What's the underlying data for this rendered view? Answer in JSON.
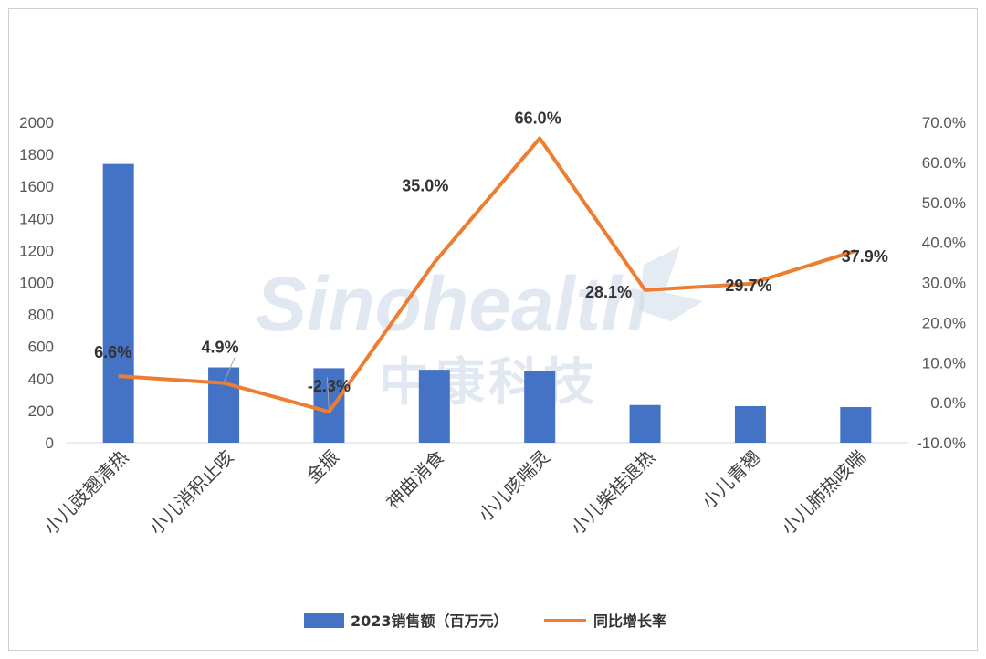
{
  "watermark": {
    "brand": "Sinohealth",
    "brand_cn": "中康科技"
  },
  "chart_data": {
    "type": "bar",
    "categories": [
      "小儿豉翘清热",
      "小儿消积止咳",
      "金振",
      "神曲消食",
      "小儿咳喘灵",
      "小儿柴桂退热",
      "小儿青翘",
      "小儿肺热咳喘"
    ],
    "series": [
      {
        "name": "2023销售额（百万元）",
        "type": "bar",
        "axis": "left",
        "color": "#4472c4",
        "values": [
          1740,
          470,
          465,
          455,
          450,
          235,
          228,
          222
        ]
      },
      {
        "name": "同比增长率",
        "type": "line",
        "axis": "right",
        "color": "#ed7d31",
        "values": [
          6.6,
          4.9,
          -2.3,
          35.0,
          66.0,
          28.1,
          29.7,
          37.9
        ],
        "labels": [
          "6.6%",
          "4.9%",
          "-2.3%",
          "35.0%",
          "66.0%",
          "28.1%",
          "29.7%",
          "37.9%"
        ]
      }
    ],
    "y_left": {
      "ylim": [
        0,
        2000
      ],
      "ticks": [
        "0",
        "200",
        "400",
        "600",
        "800",
        "1000",
        "1200",
        "1400",
        "1600",
        "1800",
        "2000"
      ]
    },
    "y_right": {
      "ylim": [
        -10,
        70
      ],
      "ticks": [
        "-10.0%",
        "0.0%",
        "10.0%",
        "20.0%",
        "30.0%",
        "40.0%",
        "50.0%",
        "60.0%",
        "70.0%"
      ]
    },
    "legend_position": "bottom",
    "grid": false
  }
}
